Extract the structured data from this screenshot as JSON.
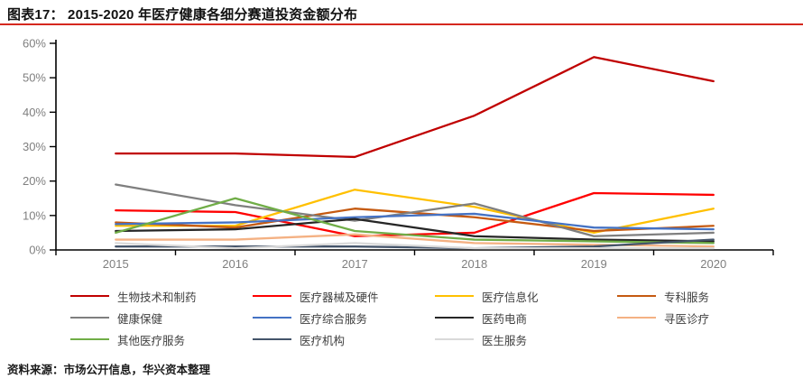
{
  "header": {
    "title": "图表17： 2015-2020 年医疗健康各细分赛道投资金额分布",
    "accent_color": "#d5281e"
  },
  "chart_data": {
    "type": "line",
    "title": "2015-2020 年医疗健康各细分赛道投资金额分布",
    "categories": [
      "2015",
      "2016",
      "2017",
      "2018",
      "2019",
      "2020"
    ],
    "series": [
      {
        "id": "biotech-pharma",
        "name": "生物技术和制药",
        "color": "#c00000",
        "values": [
          28,
          28,
          27,
          39,
          56,
          49
        ]
      },
      {
        "id": "medical-devices-hardware",
        "name": "医疗器械及硬件",
        "color": "#ff0000",
        "values": [
          11.5,
          11,
          4,
          5,
          16.5,
          16
        ]
      },
      {
        "id": "medical-it",
        "name": "医疗信息化",
        "color": "#ffc000",
        "values": [
          7,
          7,
          17.5,
          12.5,
          5,
          12
        ]
      },
      {
        "id": "specialty-services",
        "name": "专科服务",
        "color": "#c55a11",
        "values": [
          8,
          6.5,
          12,
          9.5,
          5.5,
          7
        ]
      },
      {
        "id": "health-care",
        "name": "健康保健",
        "color": "#7f7f7f",
        "values": [
          19,
          13,
          8.5,
          13.5,
          4,
          5
        ]
      },
      {
        "id": "integrated-medical-services",
        "name": "医疗综合服务",
        "color": "#4472c4",
        "values": [
          7.5,
          8,
          9.5,
          10.5,
          6.5,
          6
        ]
      },
      {
        "id": "pharma-ecommerce",
        "name": "医药电商",
        "color": "#262626",
        "values": [
          5.5,
          6,
          9,
          4,
          3,
          2.5
        ]
      },
      {
        "id": "medical-consultation",
        "name": "寻医诊疗",
        "color": "#f4b183",
        "values": [
          3,
          3,
          4.5,
          2,
          1.5,
          1
        ]
      },
      {
        "id": "other-medical-services",
        "name": "其他医疗服务",
        "color": "#70ad47",
        "values": [
          5,
          15,
          5.5,
          3,
          2.5,
          2
        ]
      },
      {
        "id": "medical-institutions",
        "name": "医疗机构",
        "color": "#44546a",
        "values": [
          1,
          1,
          1,
          0.5,
          1,
          3
        ]
      },
      {
        "id": "doctor-services",
        "name": "医生服务",
        "color": "#d9d9d9",
        "values": [
          2,
          0.5,
          2,
          0.5,
          0.5,
          0.5
        ]
      }
    ],
    "xlabel": "",
    "ylabel": "",
    "ylim": [
      0,
      60
    ],
    "y_ticks": [
      "0%",
      "10%",
      "20%",
      "30%",
      "40%",
      "50%",
      "60%"
    ],
    "grid": false,
    "legend_position": "bottom"
  },
  "footer": {
    "source": "资料来源：市场公开信息，华兴资本整理"
  }
}
